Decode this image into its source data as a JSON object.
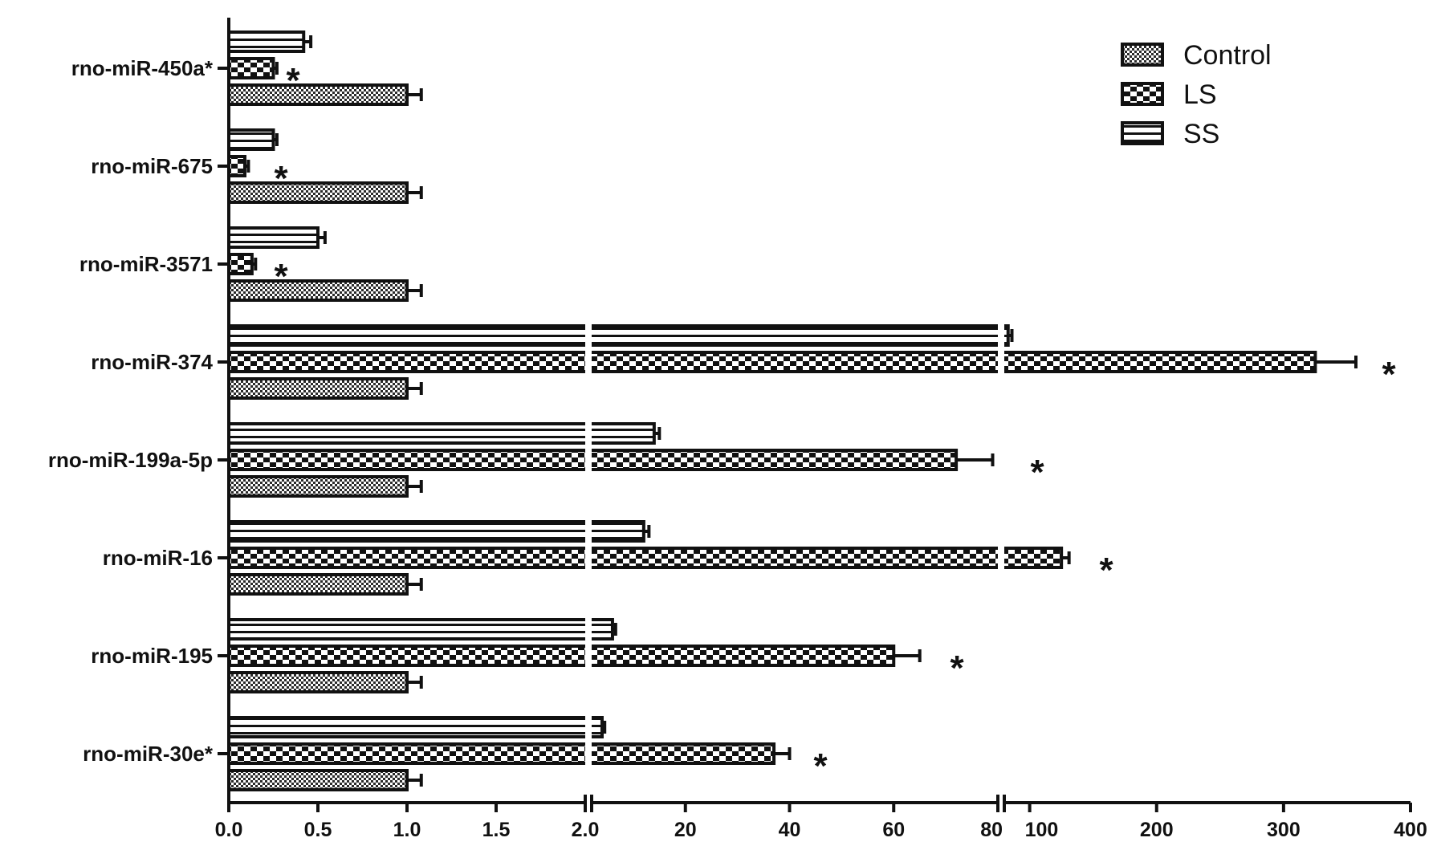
{
  "chart_data": {
    "type": "bar",
    "orientation": "horizontal",
    "title": "",
    "xlabel": "",
    "ylabel": "",
    "categories": [
      "rno-miR-450a*",
      "rno-miR-675",
      "rno-miR-3571",
      "rno-miR-374",
      "rno-miR-199a-5p",
      "rno-miR-16",
      "rno-miR-195",
      "rno-miR-30e*"
    ],
    "series": [
      {
        "name": "Control",
        "pattern": "fine-check",
        "values": [
          1.0,
          1.0,
          1.0,
          1.0,
          1.0,
          1.0,
          1.0,
          1.0
        ],
        "errors": [
          0.08,
          0.08,
          0.08,
          0.08,
          0.08,
          0.08,
          0.08,
          0.08
        ]
      },
      {
        "name": "LS",
        "pattern": "coarse-check",
        "values": [
          0.25,
          0.09,
          0.13,
          325,
          72,
          125,
          60,
          37
        ],
        "errors": [
          0.02,
          0.02,
          0.02,
          32,
          7,
          6,
          5,
          3
        ]
      },
      {
        "name": "SS",
        "pattern": "horizontal-stripes",
        "values": [
          0.42,
          0.25,
          0.5,
          83,
          14,
          12,
          6,
          4
        ],
        "errors": [
          0.04,
          0.02,
          0.04,
          3,
          1,
          1,
          0.6,
          0.5
        ]
      }
    ],
    "significant": [
      true,
      true,
      true,
      true,
      true,
      true,
      true,
      true
    ],
    "significance_marker": "*",
    "x_axis": {
      "segmented": true,
      "segments": [
        {
          "range": [
            0,
            2
          ],
          "ticks": [
            0.0,
            0.5,
            1.0,
            1.5,
            2.0
          ],
          "tick_labels": [
            "0.0",
            "0.5",
            "1.0",
            "1.5",
            "2.0"
          ]
        },
        {
          "range": [
            2,
            80
          ],
          "ticks": [
            2,
            20,
            40,
            60,
            80
          ],
          "tick_labels": [
            "",
            "20",
            "40",
            "60",
            "80"
          ]
        },
        {
          "range": [
            80,
            400
          ],
          "ticks": [
            100,
            200,
            300,
            400
          ],
          "tick_labels": [
            "100",
            "200",
            "300",
            "400"
          ]
        }
      ]
    },
    "grid": false,
    "legend_position": "top-right"
  }
}
